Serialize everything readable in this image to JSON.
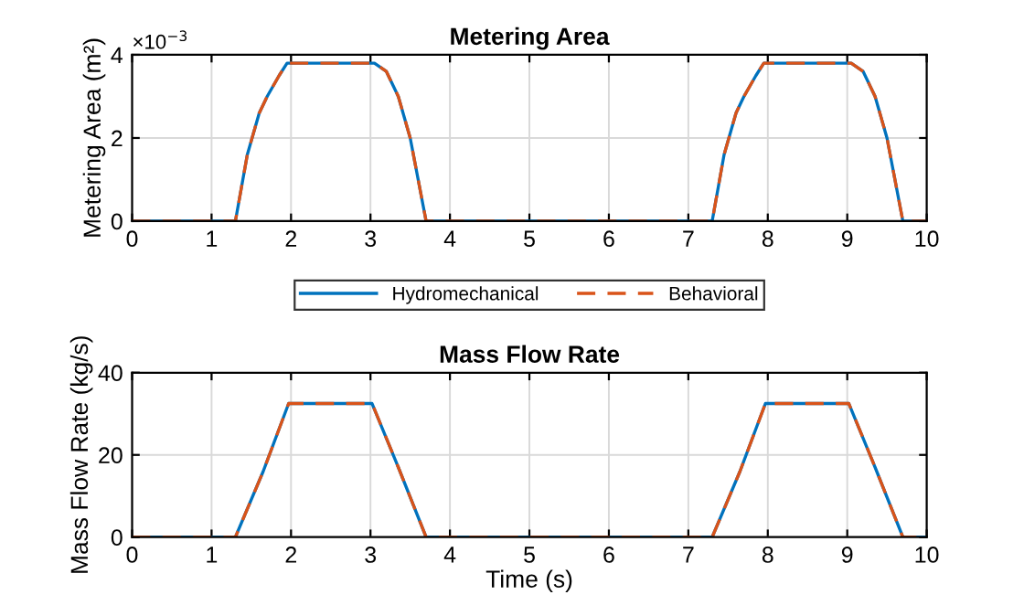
{
  "chart_data": [
    {
      "type": "line",
      "title": "Metering Area",
      "ylabel": "Metering Area (m²)",
      "annotations": [
        "×10$^{−3}$"
      ],
      "xlim": [
        0,
        10
      ],
      "xticks": [
        0,
        1,
        2,
        3,
        4,
        5,
        6,
        7,
        8,
        9,
        10
      ],
      "ylim": [
        0,
        4
      ],
      "yticks": [
        0,
        2,
        4
      ],
      "grid": true,
      "legend": "bottom",
      "x": [
        0,
        1.3,
        1.45,
        1.6,
        1.7,
        1.85,
        1.95,
        3.05,
        3.2,
        3.35,
        3.5,
        3.7,
        7.3,
        7.45,
        7.6,
        7.7,
        7.85,
        7.95,
        9.05,
        9.2,
        9.35,
        9.5,
        9.7,
        10
      ],
      "series": [
        {
          "name": "Hydromechanical",
          "color": "#0072bd",
          "line_style": "solid",
          "values": [
            0,
            0,
            1.6,
            2.6,
            3.0,
            3.5,
            3.8,
            3.8,
            3.6,
            3.0,
            2.0,
            0,
            0,
            1.6,
            2.6,
            3.0,
            3.5,
            3.8,
            3.8,
            3.6,
            3.0,
            2.0,
            0,
            0
          ]
        },
        {
          "name": "Behavioral",
          "color": "#d95319",
          "line_style": "dashed",
          "values": [
            0,
            0,
            1.6,
            2.6,
            3.0,
            3.5,
            3.8,
            3.8,
            3.6,
            3.0,
            2.0,
            0,
            0,
            1.6,
            2.6,
            3.0,
            3.5,
            3.8,
            3.8,
            3.6,
            3.0,
            2.0,
            0,
            0
          ]
        }
      ]
    },
    {
      "type": "line",
      "title": "Mass Flow Rate",
      "xlabel": "Time (s)",
      "ylabel": "Mass Flow Rate (kg/s)",
      "xlim": [
        0,
        10
      ],
      "xticks": [
        0,
        1,
        2,
        3,
        4,
        5,
        6,
        7,
        8,
        9,
        10
      ],
      "ylim": [
        0,
        40
      ],
      "yticks": [
        0,
        20,
        40
      ],
      "grid": true,
      "x": [
        0,
        1.3,
        1.65,
        1.97,
        3.02,
        3.35,
        3.7,
        7.3,
        7.65,
        7.97,
        9.02,
        9.35,
        9.7,
        10
      ],
      "series": [
        {
          "color": "#0072bd",
          "line_style": "solid",
          "values": [
            0,
            0,
            16,
            32.5,
            32.5,
            17,
            0,
            0,
            16,
            32.5,
            32.5,
            17,
            0,
            0
          ]
        },
        {
          "color": "#d95319",
          "line_style": "dashed",
          "values": [
            0,
            0,
            16,
            32.5,
            32.5,
            17,
            0,
            0,
            16,
            32.5,
            32.5,
            17,
            0,
            0
          ]
        }
      ]
    }
  ]
}
